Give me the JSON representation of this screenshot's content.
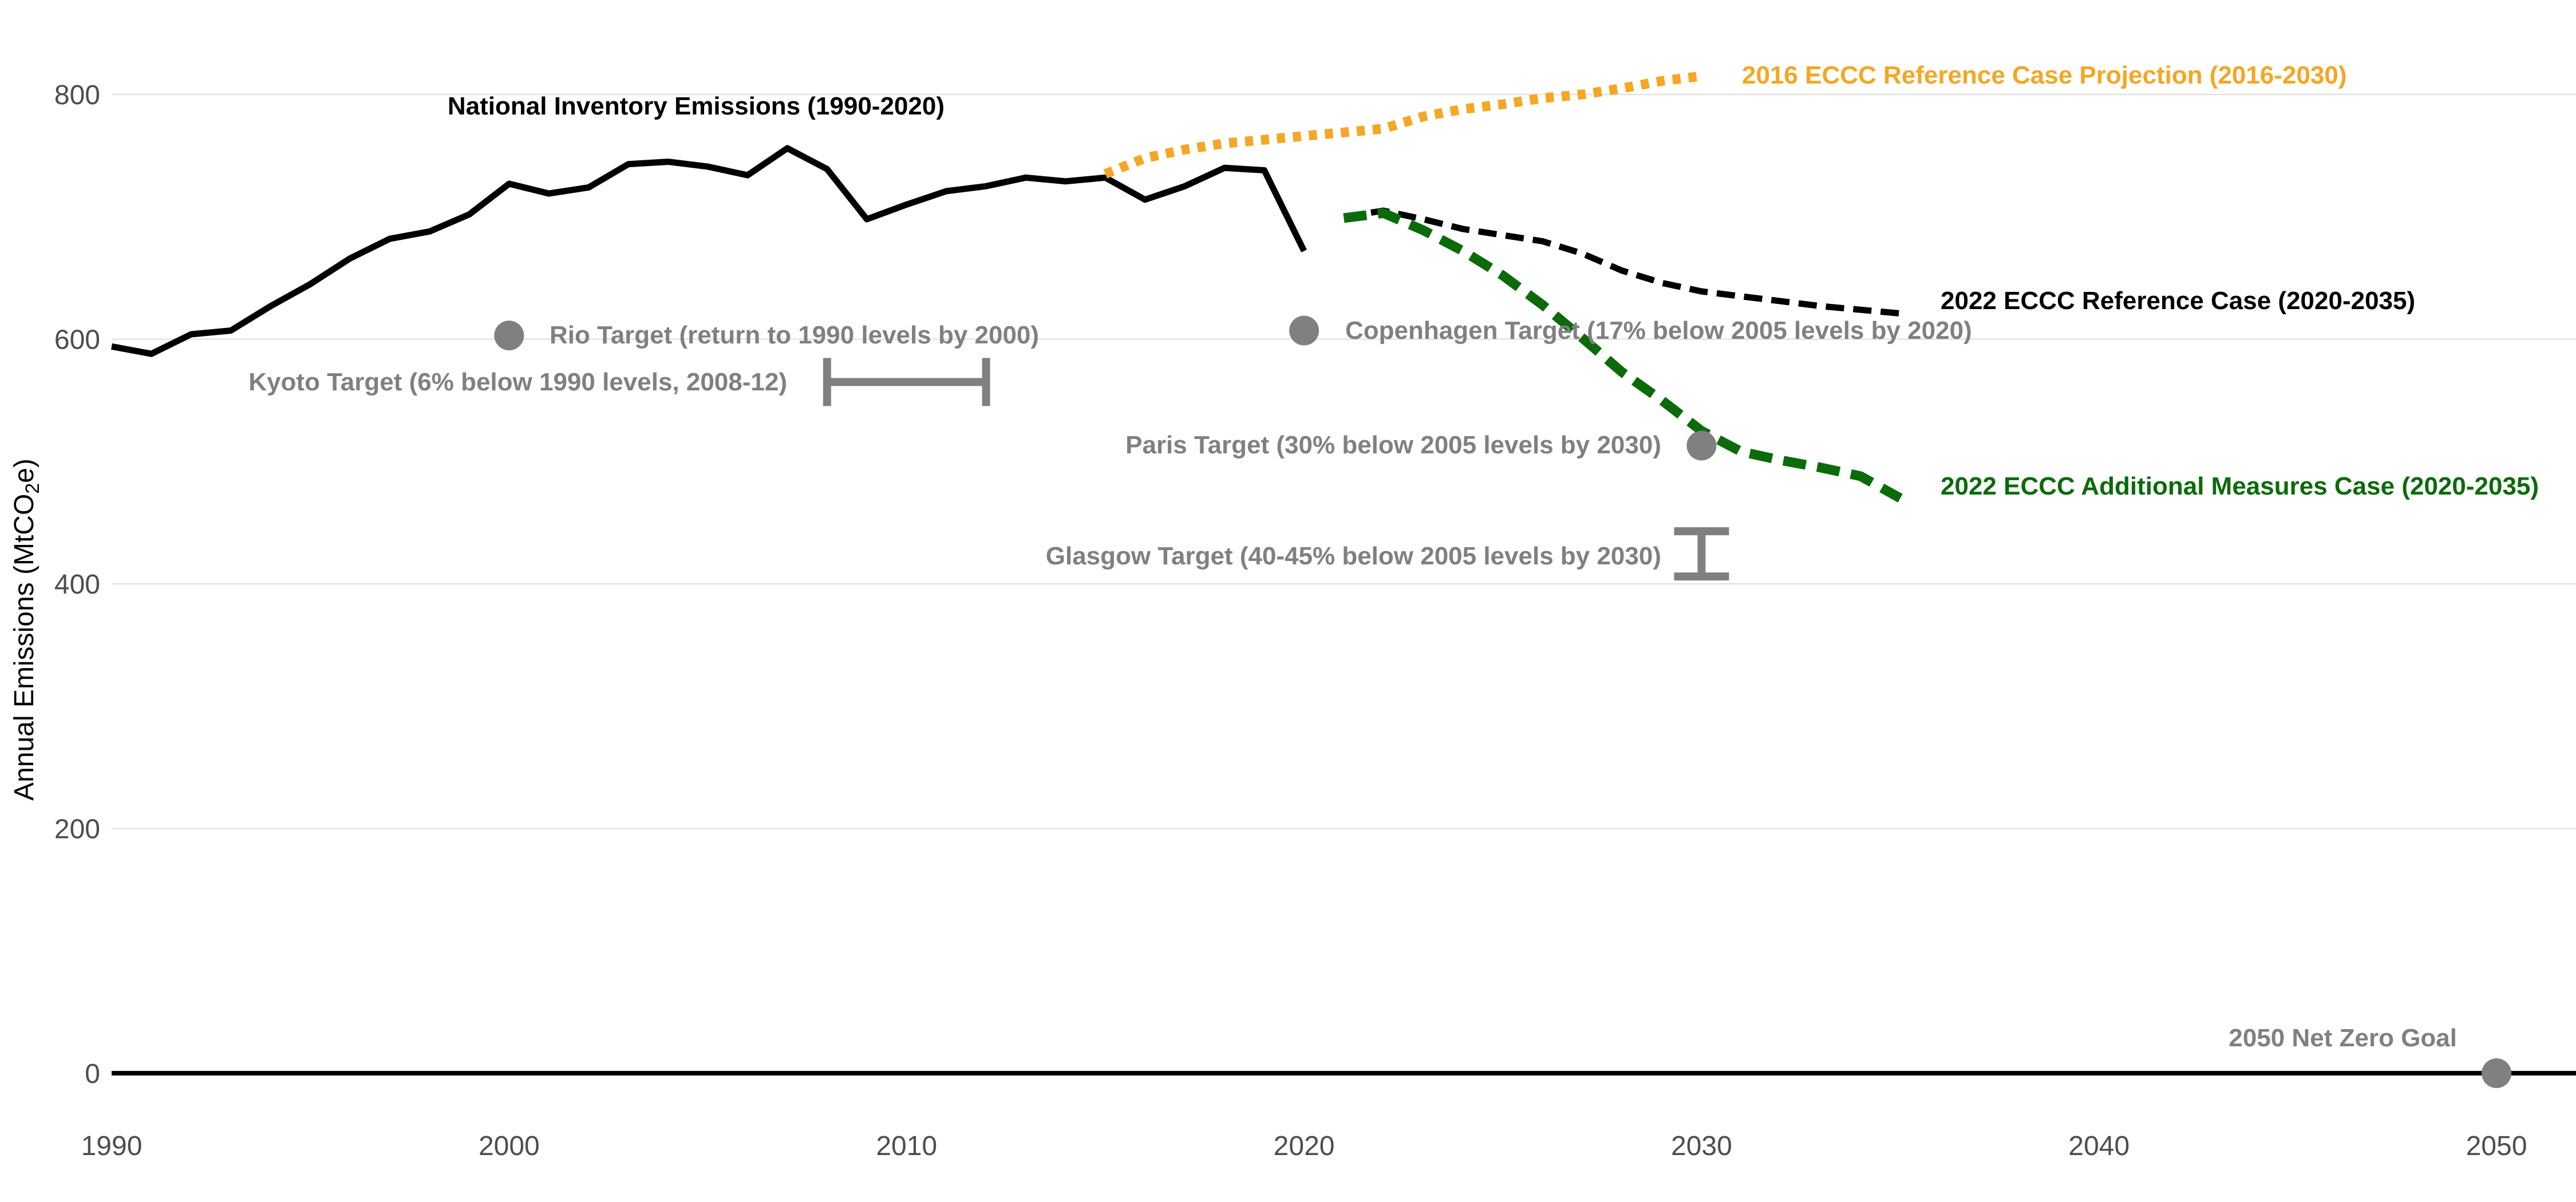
{
  "chart_data": {
    "type": "line",
    "xlim": [
      1990,
      2052
    ],
    "ylim": [
      -55,
      815
    ],
    "ylabel": "Annual Emissions (MtCO2e)",
    "ylabel_parts": {
      "main": "Annual Emissions (MtCO",
      "sub": "2",
      "end": "e)"
    },
    "x_ticks": [
      1990,
      2000,
      2010,
      2020,
      2030,
      2040,
      2050
    ],
    "y_ticks": [
      0,
      200,
      400,
      600,
      800
    ],
    "grid": "horizontal",
    "zero_line": true,
    "colors": {
      "inventory": "#000000",
      "projection_2016": "#F5A623",
      "reference_2022": "#000000",
      "additional_2022": "#0B6B0B",
      "targets": "#808080",
      "grid": "#e3e3e3"
    },
    "series": [
      {
        "key": "inventory",
        "name": "National Inventory Emissions (1990-2020)",
        "style": "solid",
        "x": [
          1990,
          1991,
          1992,
          1993,
          1994,
          1995,
          1996,
          1997,
          1998,
          1999,
          2000,
          2001,
          2002,
          2003,
          2004,
          2005,
          2006,
          2007,
          2008,
          2009,
          2010,
          2011,
          2012,
          2013,
          2014,
          2015,
          2016,
          2017,
          2018,
          2019,
          2020
        ],
        "y": [
          594,
          588,
          604,
          607,
          627,
          645,
          666,
          682,
          688,
          702,
          727,
          719,
          724,
          743,
          745,
          741,
          734,
          756,
          739,
          698,
          710,
          721,
          725,
          732,
          729,
          732,
          714,
          725,
          740,
          738,
          672
        ]
      },
      {
        "key": "projection_2016",
        "name": "2016 ECCC Reference Case Projection (2016-2030)",
        "style": "dotted",
        "x": [
          2015,
          2016,
          2017,
          2018,
          2019,
          2020,
          2021,
          2022,
          2023,
          2024,
          2025,
          2026,
          2027,
          2028,
          2029,
          2030
        ],
        "y": [
          735,
          748,
          755,
          760,
          763,
          766,
          769,
          772,
          782,
          788,
          792,
          797,
          800,
          805,
          811,
          815
        ]
      },
      {
        "key": "reference_2022",
        "name": "2022 ECCC Reference Case (2020-2035)",
        "style": "dashed",
        "x": [
          2021,
          2022,
          2023,
          2024,
          2025,
          2026,
          2027,
          2028,
          2029,
          2030,
          2031,
          2032,
          2033,
          2034,
          2035
        ],
        "y": [
          700,
          705,
          698,
          690,
          685,
          680,
          670,
          656,
          646,
          639,
          635,
          631,
          627,
          624,
          621
        ]
      },
      {
        "key": "additional_2022",
        "name": "2022 ECCC Additional Measures Case (2020-2035)",
        "style": "dashed",
        "x": [
          2021,
          2022,
          2023,
          2024,
          2025,
          2026,
          2027,
          2028,
          2029,
          2030,
          2031,
          2032,
          2033,
          2034,
          2035
        ],
        "y": [
          699,
          703,
          689,
          672,
          652,
          628,
          601,
          573,
          550,
          525,
          508,
          501,
          495,
          488,
          470
        ]
      }
    ],
    "targets": [
      {
        "type": "point",
        "label": "Rio Target (return to 1990 levels by 2000)",
        "x": 2000,
        "y": 603
      },
      {
        "type": "hrange",
        "label": "Kyoto Target (6% below 1990 levels, 2008-12)",
        "x_start": 2008,
        "x_end": 2012,
        "y": 565
      },
      {
        "type": "point",
        "label": "Copenhagen Target (17% below 2005 levels by 2020)",
        "x": 2020,
        "y": 607
      },
      {
        "type": "point",
        "label": "Paris Target (30% below 2005 levels by 2030)",
        "x": 2030,
        "y": 513
      },
      {
        "type": "vrange",
        "label": "Glasgow Target (40-45% below 2005 levels by 2030)",
        "x": 2030,
        "y_low": 406,
        "y_high": 443
      },
      {
        "type": "point",
        "label": "2050 Net Zero Goal",
        "x": 2050,
        "y": 0
      }
    ]
  }
}
